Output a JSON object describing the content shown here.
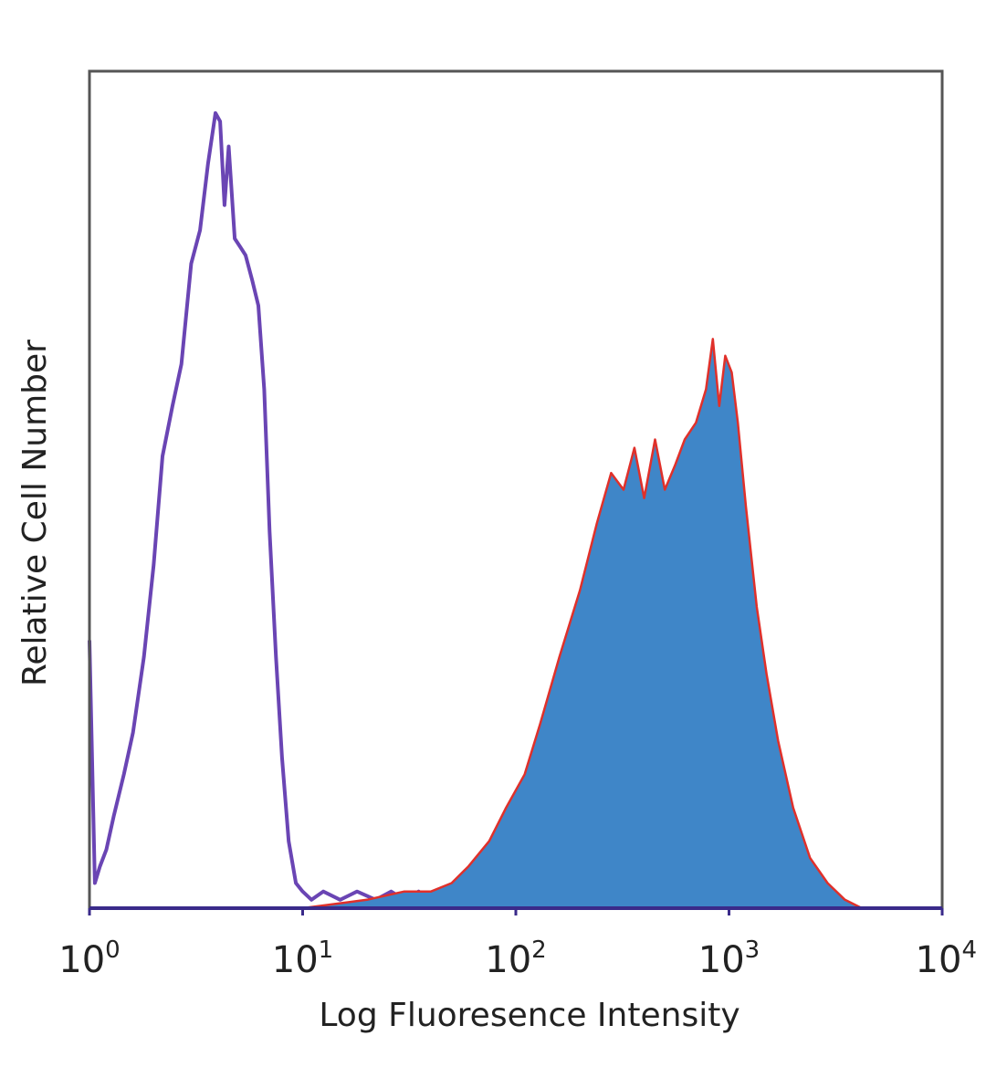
{
  "chart_data": {
    "type": "area",
    "title": "",
    "xlabel": "Log Fluoresence Intensity",
    "ylabel": "Relative Cell Number",
    "x_scale": "log",
    "xlim": [
      1,
      10000
    ],
    "ylim": [
      0,
      1
    ],
    "grid": false,
    "legend": "none",
    "x_ticks": [
      {
        "base": "10",
        "exp": "0",
        "value": 1
      },
      {
        "base": "10",
        "exp": "1",
        "value": 10
      },
      {
        "base": "10",
        "exp": "2",
        "value": 100
      },
      {
        "base": "10",
        "exp": "3",
        "value": 1000
      },
      {
        "base": "10",
        "exp": "4",
        "value": 10000
      }
    ],
    "series": [
      {
        "style": "outline",
        "color": "#6a45b4",
        "x": [
          1.0,
          1.06,
          1.12,
          1.2,
          1.3,
          1.45,
          1.6,
          1.8,
          2.0,
          2.2,
          2.45,
          2.7,
          3.0,
          3.3,
          3.6,
          3.9,
          4.1,
          4.3,
          4.5,
          4.8,
          5.1,
          5.4,
          5.8,
          6.2,
          6.6,
          7.0,
          7.5,
          8.0,
          8.6,
          9.3,
          10.0,
          11.0,
          12.5,
          15,
          18,
          22,
          26,
          30,
          35,
          40,
          50
        ],
        "y": [
          0.32,
          0.03,
          0.05,
          0.07,
          0.11,
          0.16,
          0.21,
          0.3,
          0.41,
          0.54,
          0.6,
          0.65,
          0.77,
          0.81,
          0.89,
          0.95,
          0.94,
          0.84,
          0.91,
          0.8,
          0.79,
          0.78,
          0.75,
          0.72,
          0.62,
          0.45,
          0.3,
          0.18,
          0.08,
          0.03,
          0.02,
          0.01,
          0.02,
          0.01,
          0.02,
          0.01,
          0.02,
          0.01,
          0.02,
          0.01,
          0.0
        ]
      },
      {
        "style": "filled",
        "fill": "#3f86c8",
        "color": "#e0302a",
        "x": [
          1.0,
          5,
          10,
          20,
          30,
          40,
          50,
          60,
          75,
          90,
          110,
          130,
          160,
          200,
          240,
          280,
          320,
          360,
          400,
          450,
          500,
          560,
          620,
          700,
          780,
          840,
          900,
          960,
          1030,
          1100,
          1200,
          1350,
          1500,
          1700,
          2000,
          2400,
          2900,
          3500,
          4200,
          5000
        ],
        "y": [
          0.0,
          0.0,
          0.0,
          0.01,
          0.02,
          0.02,
          0.03,
          0.05,
          0.08,
          0.12,
          0.16,
          0.22,
          0.3,
          0.38,
          0.46,
          0.52,
          0.5,
          0.55,
          0.49,
          0.56,
          0.5,
          0.53,
          0.56,
          0.58,
          0.62,
          0.68,
          0.6,
          0.66,
          0.64,
          0.58,
          0.48,
          0.36,
          0.28,
          0.2,
          0.12,
          0.06,
          0.03,
          0.01,
          0.0,
          0.0
        ]
      }
    ]
  }
}
